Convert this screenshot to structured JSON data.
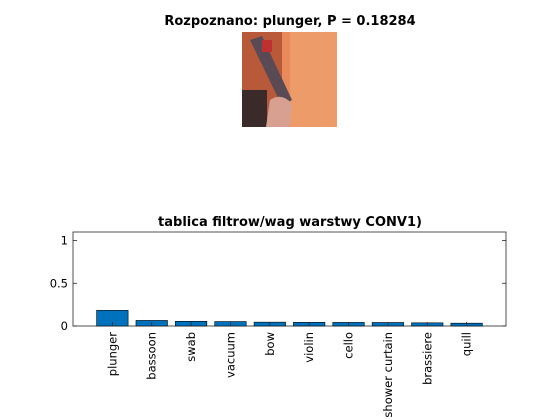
{
  "top_panel": {
    "title": "Rozpoznano: plunger, P = 0.18284",
    "photo": {
      "icon": "photo-thumbnail",
      "colors": {
        "wall": "#e88a5a",
        "wall_shadow": "#b85a3a",
        "object": "#5a4a55",
        "hand": "#d8a090",
        "hair": "#3a2a2a",
        "red_item": "#c03030"
      }
    }
  },
  "chart_data": {
    "type": "bar",
    "title": "tablica filtrow/wag warstwy CONV1)",
    "categories": [
      "plunger",
      "bassoon",
      "swab",
      "vacuum",
      "bow",
      "violin",
      "cello",
      "shower curtain",
      "brassiere",
      "quill"
    ],
    "values": [
      0.18284,
      0.065,
      0.055,
      0.052,
      0.045,
      0.043,
      0.042,
      0.041,
      0.037,
      0.033
    ],
    "ylim": [
      0,
      1.1
    ],
    "yticks": [
      0,
      0.5,
      1
    ],
    "ytick_labels": [
      "0",
      "0.5",
      "1"
    ],
    "xlabel": "",
    "ylabel": "",
    "grid": false,
    "bar_color": "#0072bd"
  }
}
